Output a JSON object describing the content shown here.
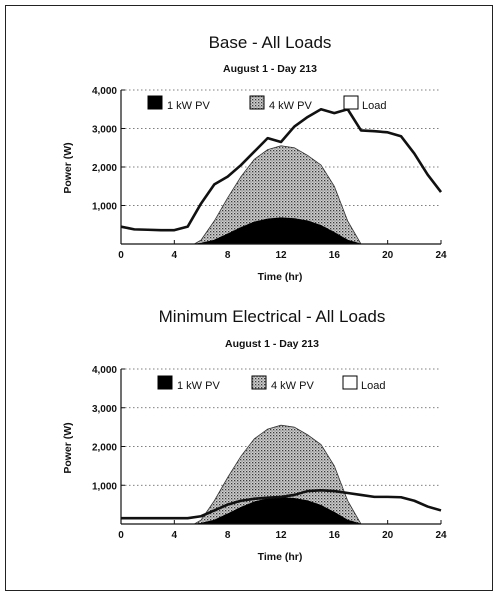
{
  "colors": {
    "pv1": "#000000",
    "pv4_fill": "#bdbdbd",
    "load_line": "#111111",
    "grid": "#555555"
  },
  "chart_data": [
    {
      "type": "area",
      "title": "Base - All Loads",
      "subtitle": "August 1 - Day 213",
      "xlabel": "Time (hr)",
      "ylabel": "Power (W)",
      "xlim": [
        0,
        24
      ],
      "ylim": [
        0,
        4000
      ],
      "xticks": [
        "0",
        "4",
        "8",
        "12",
        "16",
        "20",
        "24"
      ],
      "yticks": [
        "4,000",
        "3,000",
        "2,000",
        "1,000"
      ],
      "grid": "horizontal dotted",
      "legend_position": "top",
      "series": [
        {
          "name": "1 kW PV",
          "style": "area-black",
          "x": [
            5.5,
            6,
            7,
            8,
            9,
            10,
            11,
            12,
            13,
            14,
            15,
            16,
            17,
            18
          ],
          "y": [
            0,
            20,
            100,
            260,
            430,
            570,
            650,
            680,
            660,
            600,
            480,
            300,
            100,
            0
          ]
        },
        {
          "name": "4 kW PV",
          "style": "area-hatched",
          "x": [
            5.5,
            6,
            7,
            8,
            9,
            10,
            11,
            12,
            13,
            14,
            15,
            16,
            17,
            18
          ],
          "y": [
            0,
            100,
            600,
            1200,
            1750,
            2200,
            2450,
            2550,
            2500,
            2300,
            2050,
            1500,
            600,
            0
          ]
        },
        {
          "name": "Load",
          "style": "line",
          "x": [
            0,
            1,
            2,
            3,
            4,
            5,
            6,
            7,
            8,
            9,
            10,
            11,
            12,
            13,
            14,
            15,
            16,
            17,
            18,
            19,
            20,
            21,
            22,
            23,
            24
          ],
          "y": [
            450,
            380,
            370,
            360,
            360,
            450,
            1050,
            1550,
            1750,
            2050,
            2400,
            2750,
            2650,
            3050,
            3300,
            3500,
            3400,
            3500,
            2950,
            2930,
            2900,
            2800,
            2350,
            1800,
            1350
          ]
        }
      ]
    },
    {
      "type": "area",
      "title": "Minimum Electrical - All Loads",
      "subtitle": "August 1 - Day 213",
      "xlabel": "Time (hr)",
      "ylabel": "Power (W)",
      "xlim": [
        0,
        24
      ],
      "ylim": [
        0,
        4000
      ],
      "xticks": [
        "0",
        "4",
        "8",
        "12",
        "16",
        "20",
        "24"
      ],
      "yticks": [
        "4,000",
        "3,000",
        "2,000",
        "1,000"
      ],
      "grid": "horizontal dotted",
      "legend_position": "top",
      "series": [
        {
          "name": "1 kW PV",
          "style": "area-black",
          "x": [
            5.5,
            6,
            7,
            8,
            9,
            10,
            11,
            12,
            13,
            14,
            15,
            16,
            17,
            18
          ],
          "y": [
            0,
            20,
            100,
            260,
            430,
            570,
            650,
            680,
            660,
            600,
            480,
            300,
            100,
            0
          ]
        },
        {
          "name": "4 kW PV",
          "style": "area-hatched",
          "x": [
            5.5,
            6,
            7,
            8,
            9,
            10,
            11,
            12,
            13,
            14,
            15,
            16,
            17,
            18
          ],
          "y": [
            0,
            100,
            600,
            1200,
            1750,
            2200,
            2450,
            2550,
            2500,
            2300,
            2050,
            1500,
            600,
            0
          ]
        },
        {
          "name": "Load",
          "style": "line",
          "x": [
            0,
            1,
            2,
            3,
            4,
            5,
            6,
            7,
            8,
            9,
            10,
            11,
            12,
            13,
            14,
            15,
            16,
            17,
            18,
            19,
            20,
            21,
            22,
            23,
            24
          ],
          "y": [
            150,
            150,
            150,
            150,
            150,
            150,
            200,
            350,
            500,
            600,
            650,
            680,
            700,
            750,
            850,
            870,
            850,
            800,
            750,
            700,
            700,
            690,
            600,
            450,
            350
          ]
        }
      ]
    }
  ]
}
